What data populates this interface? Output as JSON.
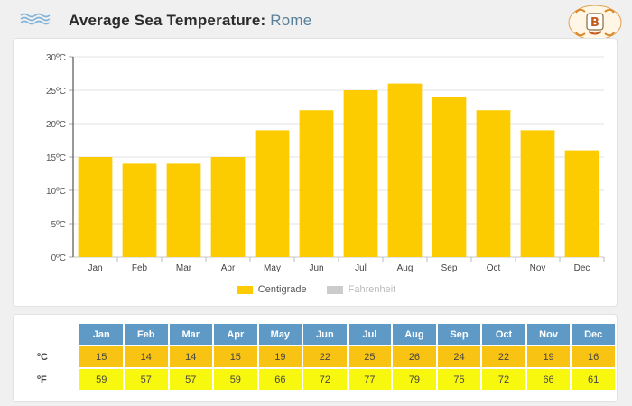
{
  "header": {
    "title": "Average Sea Temperature:",
    "city": "Rome",
    "icon": "wave-icon",
    "logo": "site-logo"
  },
  "chart_data": {
    "type": "bar",
    "categories": [
      "Jan",
      "Feb",
      "Mar",
      "Apr",
      "May",
      "Jun",
      "Jul",
      "Aug",
      "Sep",
      "Oct",
      "Nov",
      "Dec"
    ],
    "series": [
      {
        "name": "Centigrade",
        "values": [
          15,
          14,
          14,
          15,
          19,
          22,
          25,
          26,
          24,
          22,
          19,
          16
        ],
        "color": "#fccc00"
      }
    ],
    "ylim": [
      0,
      30
    ],
    "yticks": [
      "0ºC",
      "5ºC",
      "10ºC",
      "15ºC",
      "20ºC",
      "25ºC",
      "30ºC"
    ],
    "grid": true,
    "legend": [
      {
        "label": "Centigrade",
        "color": "#fccc00"
      },
      {
        "label": "Fahrenheit",
        "color": "#cccccc"
      }
    ],
    "legend_position": "bottom"
  },
  "table": {
    "months": [
      "Jan",
      "Feb",
      "Mar",
      "Apr",
      "May",
      "Jun",
      "Jul",
      "Aug",
      "Sep",
      "Oct",
      "Nov",
      "Dec"
    ],
    "celsius_label": "ºC",
    "fahrenheit_label": "ºF",
    "celsius": [
      15,
      14,
      14,
      15,
      19,
      22,
      25,
      26,
      24,
      22,
      19,
      16
    ],
    "fahrenheit": [
      59,
      57,
      57,
      59,
      66,
      72,
      77,
      79,
      75,
      72,
      66,
      61
    ]
  },
  "colors": {
    "bar": "#fccc00",
    "header_cell": "#5f9ac6",
    "celsius_cell": "#f9c313",
    "fahrenheit_cell": "#f8f80e"
  }
}
